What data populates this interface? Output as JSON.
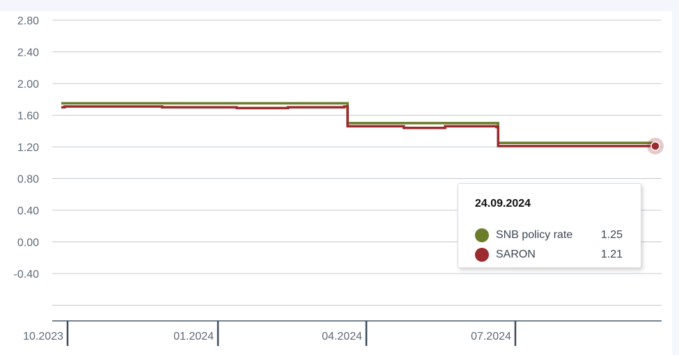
{
  "chart_data": {
    "type": "line",
    "ylim": [
      -0.8,
      2.8
    ],
    "yticks": [
      "2.80",
      "2.40",
      "2.00",
      "1.60",
      "1.20",
      "0.80",
      "0.40",
      "0.00",
      "-0.40"
    ],
    "xticks": [
      "10.2023",
      "01.2024",
      "04.2024",
      "07.2024"
    ],
    "grid": true,
    "series": [
      {
        "name": "SNB policy rate",
        "color": "#6b7d2a",
        "x": [
          "2023-10-01",
          "2024-03-21",
          "2024-03-22",
          "2024-06-20",
          "2024-06-21",
          "2024-09-24"
        ],
        "values": [
          1.75,
          1.75,
          1.5,
          1.5,
          1.25,
          1.25
        ]
      },
      {
        "name": "SARON",
        "color": "#9b2b2f",
        "x": [
          "2023-10-01",
          "2023-10-03",
          "2023-12-01",
          "2024-01-15",
          "2024-02-15",
          "2024-03-20",
          "2024-03-22",
          "2024-04-25",
          "2024-05-20",
          "2024-06-20",
          "2024-06-21",
          "2024-08-15",
          "2024-09-24"
        ],
        "values": [
          1.7,
          1.71,
          1.7,
          1.69,
          1.7,
          1.71,
          1.46,
          1.44,
          1.46,
          1.45,
          1.21,
          1.21,
          1.21
        ]
      }
    ]
  },
  "tooltip": {
    "date": "24.09.2024",
    "rows": [
      {
        "name": "SNB policy rate",
        "value": "1.25",
        "color": "#6b7d2a"
      },
      {
        "name": "SARON",
        "value": "1.21",
        "color": "#9b2b2f"
      }
    ]
  }
}
